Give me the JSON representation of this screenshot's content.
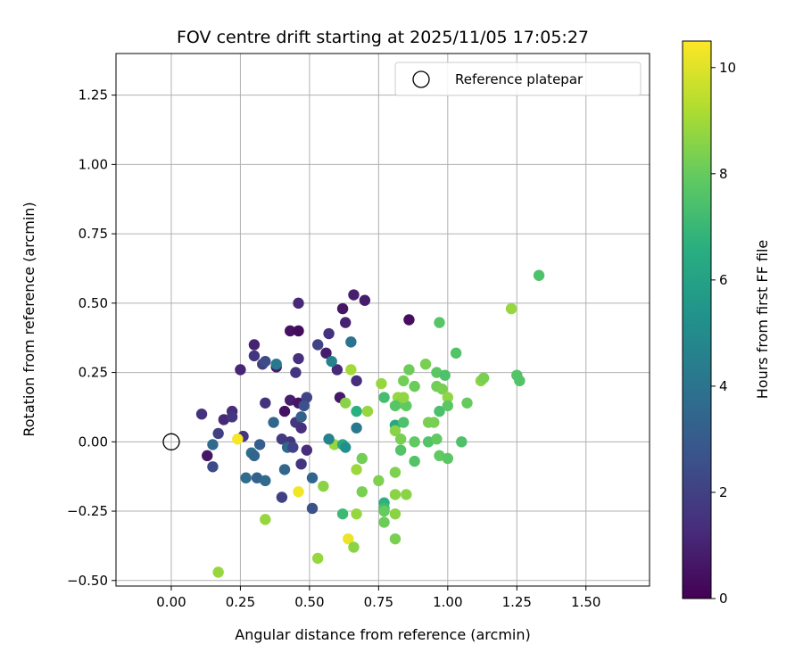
{
  "chart_data": {
    "type": "scatter",
    "title": "FOV centre drift starting at 2025/11/05 17:05:27",
    "xlabel": "Angular distance from reference (arcmin)",
    "ylabel": "Rotation from reference (arcmin)",
    "xlim": [
      -0.2,
      1.73
    ],
    "ylim": [
      -0.52,
      1.4
    ],
    "xticks": [
      "0.00",
      "0.25",
      "0.50",
      "0.75",
      "1.00",
      "1.25",
      "1.50"
    ],
    "yticks": [
      "−0.50",
      "−0.25",
      "0.00",
      "0.25",
      "0.50",
      "0.75",
      "1.00",
      "1.25"
    ],
    "grid": true,
    "legend": {
      "position": "top-right",
      "label": "Reference platepar"
    },
    "reference_point": {
      "x": 0.0,
      "y": 0.0
    },
    "colorbar": {
      "label": "Hours from first FF file",
      "range": [
        0,
        10.5
      ],
      "ticks": [
        "0",
        "2",
        "4",
        "6",
        "8",
        "10"
      ],
      "colormap": "viridis"
    },
    "points": [
      {
        "x": 0.46,
        "y": 0.5,
        "c": 1.2
      },
      {
        "x": 0.66,
        "y": 0.53,
        "c": 0.9
      },
      {
        "x": 0.7,
        "y": 0.51,
        "c": 0.8
      },
      {
        "x": 0.62,
        "y": 0.48,
        "c": 0.6
      },
      {
        "x": 0.86,
        "y": 0.44,
        "c": 0.4
      },
      {
        "x": 0.63,
        "y": 0.43,
        "c": 1.0
      },
      {
        "x": 0.43,
        "y": 0.4,
        "c": 0.5
      },
      {
        "x": 0.46,
        "y": 0.4,
        "c": 0.3
      },
      {
        "x": 0.57,
        "y": 0.39,
        "c": 1.5
      },
      {
        "x": 0.53,
        "y": 0.35,
        "c": 2.1
      },
      {
        "x": 0.3,
        "y": 0.35,
        "c": 1.0
      },
      {
        "x": 0.56,
        "y": 0.32,
        "c": 0.8
      },
      {
        "x": 0.3,
        "y": 0.31,
        "c": 1.6
      },
      {
        "x": 0.46,
        "y": 0.3,
        "c": 1.4
      },
      {
        "x": 0.33,
        "y": 0.28,
        "c": 2.0
      },
      {
        "x": 0.34,
        "y": 0.29,
        "c": 2.4
      },
      {
        "x": 0.38,
        "y": 0.27,
        "c": 0.8
      },
      {
        "x": 0.25,
        "y": 0.26,
        "c": 1.1
      },
      {
        "x": 0.45,
        "y": 0.25,
        "c": 1.6
      },
      {
        "x": 0.6,
        "y": 0.26,
        "c": 1.2
      },
      {
        "x": 0.38,
        "y": 0.28,
        "c": 4.2
      },
      {
        "x": 0.58,
        "y": 0.29,
        "c": 4.6
      },
      {
        "x": 0.65,
        "y": 0.36,
        "c": 4.0
      },
      {
        "x": 0.67,
        "y": 0.22,
        "c": 1.3
      },
      {
        "x": 0.43,
        "y": 0.15,
        "c": 0.9
      },
      {
        "x": 0.34,
        "y": 0.14,
        "c": 1.5
      },
      {
        "x": 0.46,
        "y": 0.14,
        "c": 0.6
      },
      {
        "x": 0.49,
        "y": 0.16,
        "c": 2.1
      },
      {
        "x": 0.48,
        "y": 0.13,
        "c": 2.6
      },
      {
        "x": 0.61,
        "y": 0.16,
        "c": 0.7
      },
      {
        "x": 0.41,
        "y": 0.11,
        "c": 0.5
      },
      {
        "x": 0.22,
        "y": 0.11,
        "c": 1.3
      },
      {
        "x": 0.11,
        "y": 0.1,
        "c": 1.5
      },
      {
        "x": 0.19,
        "y": 0.08,
        "c": 1.2
      },
      {
        "x": 0.22,
        "y": 0.09,
        "c": 1.7
      },
      {
        "x": 0.37,
        "y": 0.07,
        "c": 3.5
      },
      {
        "x": 0.45,
        "y": 0.07,
        "c": 1.7
      },
      {
        "x": 0.47,
        "y": 0.05,
        "c": 1.4
      },
      {
        "x": 0.47,
        "y": 0.09,
        "c": 3.2
      },
      {
        "x": 0.17,
        "y": 0.03,
        "c": 2.0
      },
      {
        "x": 0.26,
        "y": 0.02,
        "c": 1.6
      },
      {
        "x": 0.4,
        "y": 0.01,
        "c": 1.8
      },
      {
        "x": 0.43,
        "y": 0.0,
        "c": 1.7
      },
      {
        "x": 0.15,
        "y": -0.01,
        "c": 3.6
      },
      {
        "x": 0.32,
        "y": -0.01,
        "c": 3.1
      },
      {
        "x": 0.42,
        "y": -0.02,
        "c": 3.5
      },
      {
        "x": 0.44,
        "y": -0.02,
        "c": 2.1
      },
      {
        "x": 0.49,
        "y": -0.03,
        "c": 1.3
      },
      {
        "x": 0.29,
        "y": -0.04,
        "c": 3.8
      },
      {
        "x": 0.3,
        "y": -0.05,
        "c": 3.4
      },
      {
        "x": 0.13,
        "y": -0.05,
        "c": 0.6
      },
      {
        "x": 0.15,
        "y": -0.09,
        "c": 2.4
      },
      {
        "x": 0.47,
        "y": -0.08,
        "c": 1.6
      },
      {
        "x": 0.41,
        "y": -0.1,
        "c": 3.5
      },
      {
        "x": 0.27,
        "y": -0.13,
        "c": 3.7
      },
      {
        "x": 0.31,
        "y": -0.13,
        "c": 3.3
      },
      {
        "x": 0.34,
        "y": -0.14,
        "c": 3.6
      },
      {
        "x": 0.51,
        "y": -0.13,
        "c": 3.4
      },
      {
        "x": 0.4,
        "y": -0.2,
        "c": 2.0
      },
      {
        "x": 0.51,
        "y": -0.24,
        "c": 2.6
      },
      {
        "x": 0.24,
        "y": 0.01,
        "c": 10.4
      },
      {
        "x": 0.46,
        "y": -0.18,
        "c": 10.3
      },
      {
        "x": 0.64,
        "y": -0.35,
        "c": 10.2
      },
      {
        "x": 0.59,
        "y": -0.01,
        "c": 8.8
      },
      {
        "x": 0.57,
        "y": 0.01,
        "c": 4.6
      },
      {
        "x": 0.62,
        "y": -0.01,
        "c": 6.3
      },
      {
        "x": 0.63,
        "y": -0.02,
        "c": 5.2
      },
      {
        "x": 0.67,
        "y": 0.05,
        "c": 4.2
      },
      {
        "x": 0.67,
        "y": 0.11,
        "c": 6.6
      },
      {
        "x": 0.63,
        "y": 0.14,
        "c": 8.6
      },
      {
        "x": 0.65,
        "y": 0.26,
        "c": 9.0
      },
      {
        "x": 0.71,
        "y": 0.11,
        "c": 8.8
      },
      {
        "x": 0.76,
        "y": 0.21,
        "c": 8.8
      },
      {
        "x": 0.77,
        "y": 0.16,
        "c": 7.3
      },
      {
        "x": 0.82,
        "y": 0.16,
        "c": 8.8
      },
      {
        "x": 0.83,
        "y": 0.14,
        "c": 8.4
      },
      {
        "x": 0.81,
        "y": 0.13,
        "c": 7.7
      },
      {
        "x": 0.85,
        "y": 0.13,
        "c": 7.9
      },
      {
        "x": 0.81,
        "y": 0.06,
        "c": 6.3
      },
      {
        "x": 0.84,
        "y": 0.07,
        "c": 7.5
      },
      {
        "x": 0.81,
        "y": 0.04,
        "c": 8.6
      },
      {
        "x": 0.83,
        "y": 0.01,
        "c": 8.3
      },
      {
        "x": 0.83,
        "y": -0.03,
        "c": 7.6
      },
      {
        "x": 0.84,
        "y": 0.22,
        "c": 8.2
      },
      {
        "x": 0.86,
        "y": 0.26,
        "c": 8.1
      },
      {
        "x": 0.88,
        "y": 0.2,
        "c": 8.1
      },
      {
        "x": 0.84,
        "y": 0.16,
        "c": 8.7
      },
      {
        "x": 0.88,
        "y": 0.0,
        "c": 7.9
      },
      {
        "x": 0.88,
        "y": -0.07,
        "c": 7.6
      },
      {
        "x": 0.92,
        "y": 0.28,
        "c": 8.3
      },
      {
        "x": 0.93,
        "y": 0.07,
        "c": 8.3
      },
      {
        "x": 0.95,
        "y": 0.07,
        "c": 8.3
      },
      {
        "x": 0.93,
        "y": 0.0,
        "c": 7.6
      },
      {
        "x": 0.96,
        "y": 0.01,
        "c": 7.9
      },
      {
        "x": 0.96,
        "y": 0.25,
        "c": 7.8
      },
      {
        "x": 0.97,
        "y": 0.43,
        "c": 7.7
      },
      {
        "x": 0.96,
        "y": 0.2,
        "c": 8.2
      },
      {
        "x": 0.97,
        "y": 0.11,
        "c": 7.4
      },
      {
        "x": 0.99,
        "y": 0.24,
        "c": 7.5
      },
      {
        "x": 0.98,
        "y": 0.19,
        "c": 8.3
      },
      {
        "x": 1.0,
        "y": 0.16,
        "c": 8.7
      },
      {
        "x": 1.0,
        "y": 0.13,
        "c": 7.8
      },
      {
        "x": 0.97,
        "y": -0.05,
        "c": 7.9
      },
      {
        "x": 1.0,
        "y": -0.06,
        "c": 7.8
      },
      {
        "x": 1.03,
        "y": 0.32,
        "c": 7.6
      },
      {
        "x": 1.05,
        "y": 0.0,
        "c": 7.5
      },
      {
        "x": 1.07,
        "y": 0.14,
        "c": 8.0
      },
      {
        "x": 1.12,
        "y": 0.22,
        "c": 8.6
      },
      {
        "x": 1.13,
        "y": 0.23,
        "c": 8.3
      },
      {
        "x": 1.23,
        "y": 0.48,
        "c": 8.8
      },
      {
        "x": 1.25,
        "y": 0.24,
        "c": 7.6
      },
      {
        "x": 1.26,
        "y": 0.22,
        "c": 7.6
      },
      {
        "x": 1.33,
        "y": 0.6,
        "c": 7.5
      },
      {
        "x": 0.69,
        "y": -0.06,
        "c": 8.2
      },
      {
        "x": 0.67,
        "y": -0.1,
        "c": 8.9
      },
      {
        "x": 0.69,
        "y": -0.18,
        "c": 8.3
      },
      {
        "x": 0.75,
        "y": -0.14,
        "c": 8.4
      },
      {
        "x": 0.55,
        "y": -0.16,
        "c": 8.6
      },
      {
        "x": 0.81,
        "y": -0.11,
        "c": 8.4
      },
      {
        "x": 0.81,
        "y": -0.19,
        "c": 8.6
      },
      {
        "x": 0.85,
        "y": -0.19,
        "c": 8.6
      },
      {
        "x": 0.77,
        "y": -0.22,
        "c": 6.7
      },
      {
        "x": 0.77,
        "y": -0.24,
        "c": 7.2
      },
      {
        "x": 0.77,
        "y": -0.25,
        "c": 8.0
      },
      {
        "x": 0.67,
        "y": -0.26,
        "c": 8.8
      },
      {
        "x": 0.81,
        "y": -0.26,
        "c": 8.6
      },
      {
        "x": 0.62,
        "y": -0.26,
        "c": 7.1
      },
      {
        "x": 0.77,
        "y": -0.29,
        "c": 8.1
      },
      {
        "x": 0.81,
        "y": -0.35,
        "c": 8.3
      },
      {
        "x": 0.66,
        "y": -0.38,
        "c": 8.6
      },
      {
        "x": 0.53,
        "y": -0.42,
        "c": 8.8
      },
      {
        "x": 0.34,
        "y": -0.28,
        "c": 8.8
      },
      {
        "x": 0.17,
        "y": -0.47,
        "c": 8.8
      }
    ]
  }
}
